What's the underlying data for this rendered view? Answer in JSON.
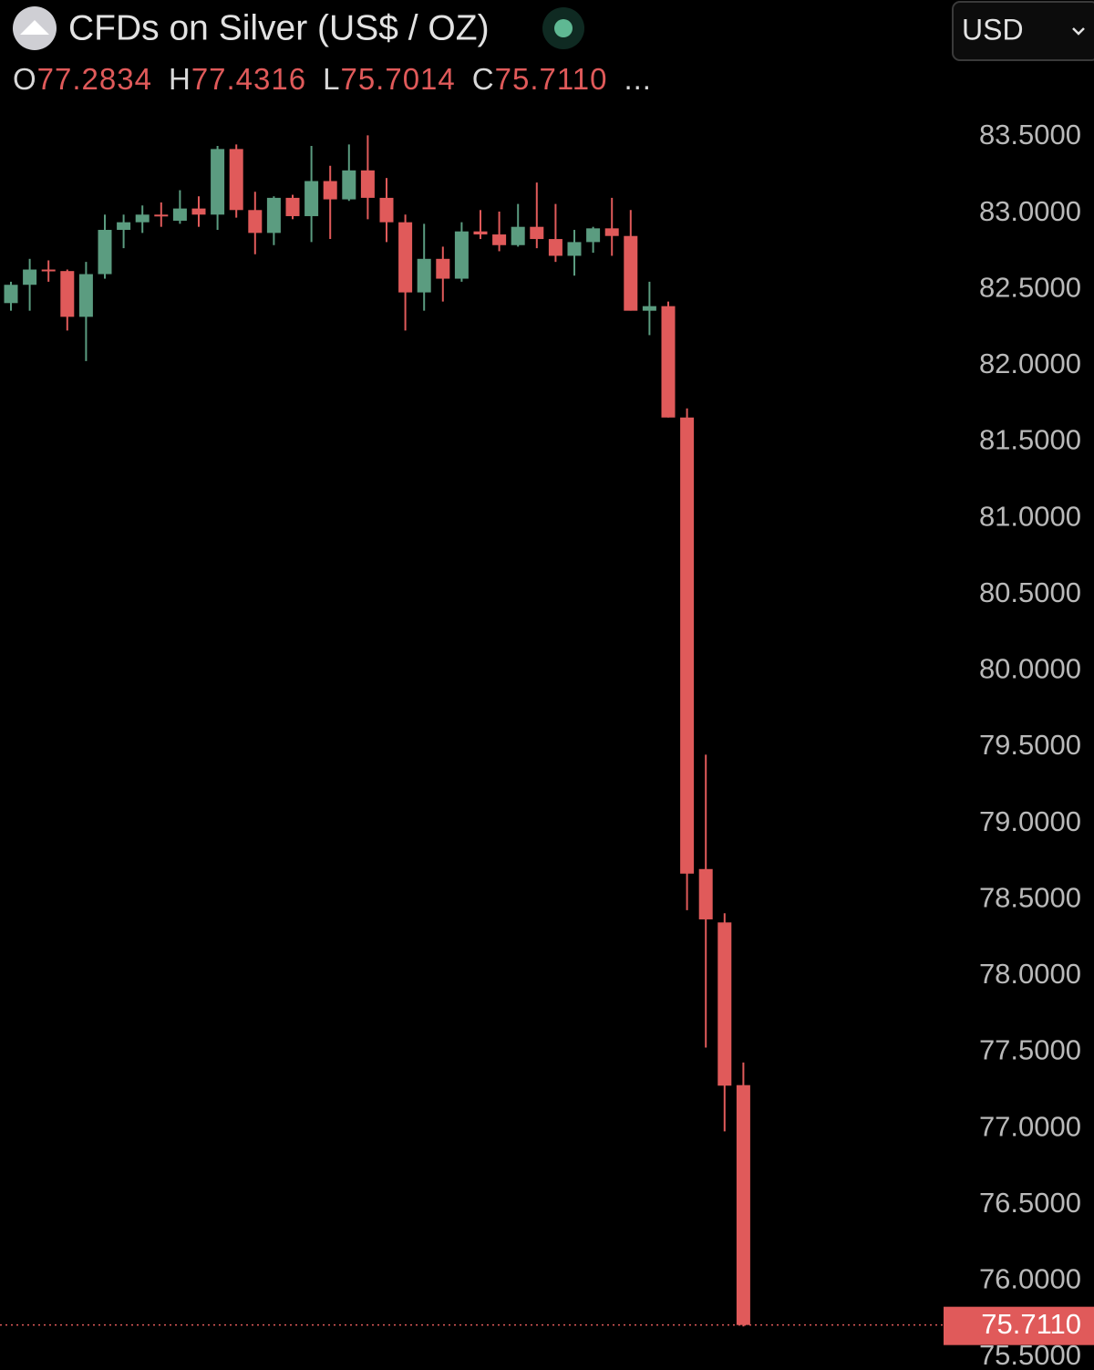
{
  "header": {
    "title": "CFDs on Silver (US$ / OZ)",
    "currency": "USD",
    "ohlc": [
      {
        "key": "O",
        "value": "77.2834"
      },
      {
        "key": "H",
        "value": "77.4316"
      },
      {
        "key": "L",
        "value": "75.7014"
      },
      {
        "key": "C",
        "value": "75.7110"
      }
    ],
    "more": "..."
  },
  "chart_data": {
    "type": "candlestick",
    "up_color": "#5b9c80",
    "down_color": "#e05a5a",
    "open": [
      82.41,
      82.53,
      82.63,
      82.62,
      82.32,
      82.6,
      82.89,
      82.94,
      82.99,
      82.95,
      83.03,
      82.99,
      83.42,
      83.02,
      82.87,
      83.1,
      82.98,
      83.21,
      83.09,
      83.28,
      83.1,
      82.94,
      82.48,
      82.7,
      82.57,
      82.88,
      82.86,
      82.79,
      82.91,
      82.83,
      82.72,
      82.81,
      82.9,
      82.85,
      82.36,
      82.39,
      81.66,
      78.7,
      78.35,
      77.2834
    ],
    "high": [
      82.55,
      82.7,
      82.69,
      82.63,
      82.68,
      82.99,
      82.99,
      83.05,
      83.07,
      83.15,
      83.11,
      83.44,
      83.45,
      83.14,
      83.11,
      83.12,
      83.44,
      83.31,
      83.45,
      83.51,
      83.23,
      82.99,
      82.93,
      82.78,
      82.94,
      83.02,
      83.01,
      83.06,
      83.2,
      83.06,
      82.89,
      82.91,
      83.1,
      83.02,
      82.55,
      82.42,
      81.72,
      79.45,
      78.41,
      77.4316
    ],
    "low": [
      82.36,
      82.36,
      82.55,
      82.23,
      82.03,
      82.57,
      82.77,
      82.87,
      82.91,
      82.93,
      82.91,
      82.89,
      82.97,
      82.73,
      82.79,
      82.96,
      82.81,
      82.83,
      83.08,
      82.96,
      82.81,
      82.23,
      82.36,
      82.42,
      82.55,
      82.83,
      82.75,
      82.78,
      82.77,
      82.68,
      82.59,
      82.74,
      82.72,
      82.36,
      82.2,
      81.66,
      78.43,
      77.53,
      76.98,
      75.7014
    ],
    "close": [
      82.53,
      82.63,
      82.62,
      82.32,
      82.6,
      82.89,
      82.94,
      82.99,
      82.98,
      83.03,
      82.99,
      83.42,
      83.02,
      82.87,
      83.1,
      82.98,
      83.21,
      83.09,
      83.28,
      83.1,
      82.94,
      82.48,
      82.7,
      82.57,
      82.88,
      82.86,
      82.79,
      82.91,
      82.83,
      82.72,
      82.81,
      82.9,
      82.85,
      82.36,
      82.39,
      81.66,
      78.67,
      78.37,
      77.28,
      75.711
    ],
    "last_price": {
      "value": 75.711,
      "label": "75.7110"
    },
    "ylim": [
      75.416,
      83.799
    ],
    "yticks": [
      {
        "value": 83.5,
        "label": "83.5000"
      },
      {
        "value": 83,
        "label": "83.0000"
      },
      {
        "value": 82.5,
        "label": "82.5000"
      },
      {
        "value": 82,
        "label": "82.0000"
      },
      {
        "value": 81.5,
        "label": "81.5000"
      },
      {
        "value": 81,
        "label": "81.0000"
      },
      {
        "value": 80.5,
        "label": "80.5000"
      },
      {
        "value": 80,
        "label": "80.0000"
      },
      {
        "value": 79.5,
        "label": "79.5000"
      },
      {
        "value": 79,
        "label": "79.0000"
      },
      {
        "value": 78.5,
        "label": "78.5000"
      },
      {
        "value": 78,
        "label": "78.0000"
      },
      {
        "value": 77.5,
        "label": "77.5000"
      },
      {
        "value": 77,
        "label": "77.0000"
      },
      {
        "value": 76.5,
        "label": "76.5000"
      },
      {
        "value": 76,
        "label": "76.0000"
      },
      {
        "value": 75.5,
        "label": "75.5000"
      }
    ]
  }
}
